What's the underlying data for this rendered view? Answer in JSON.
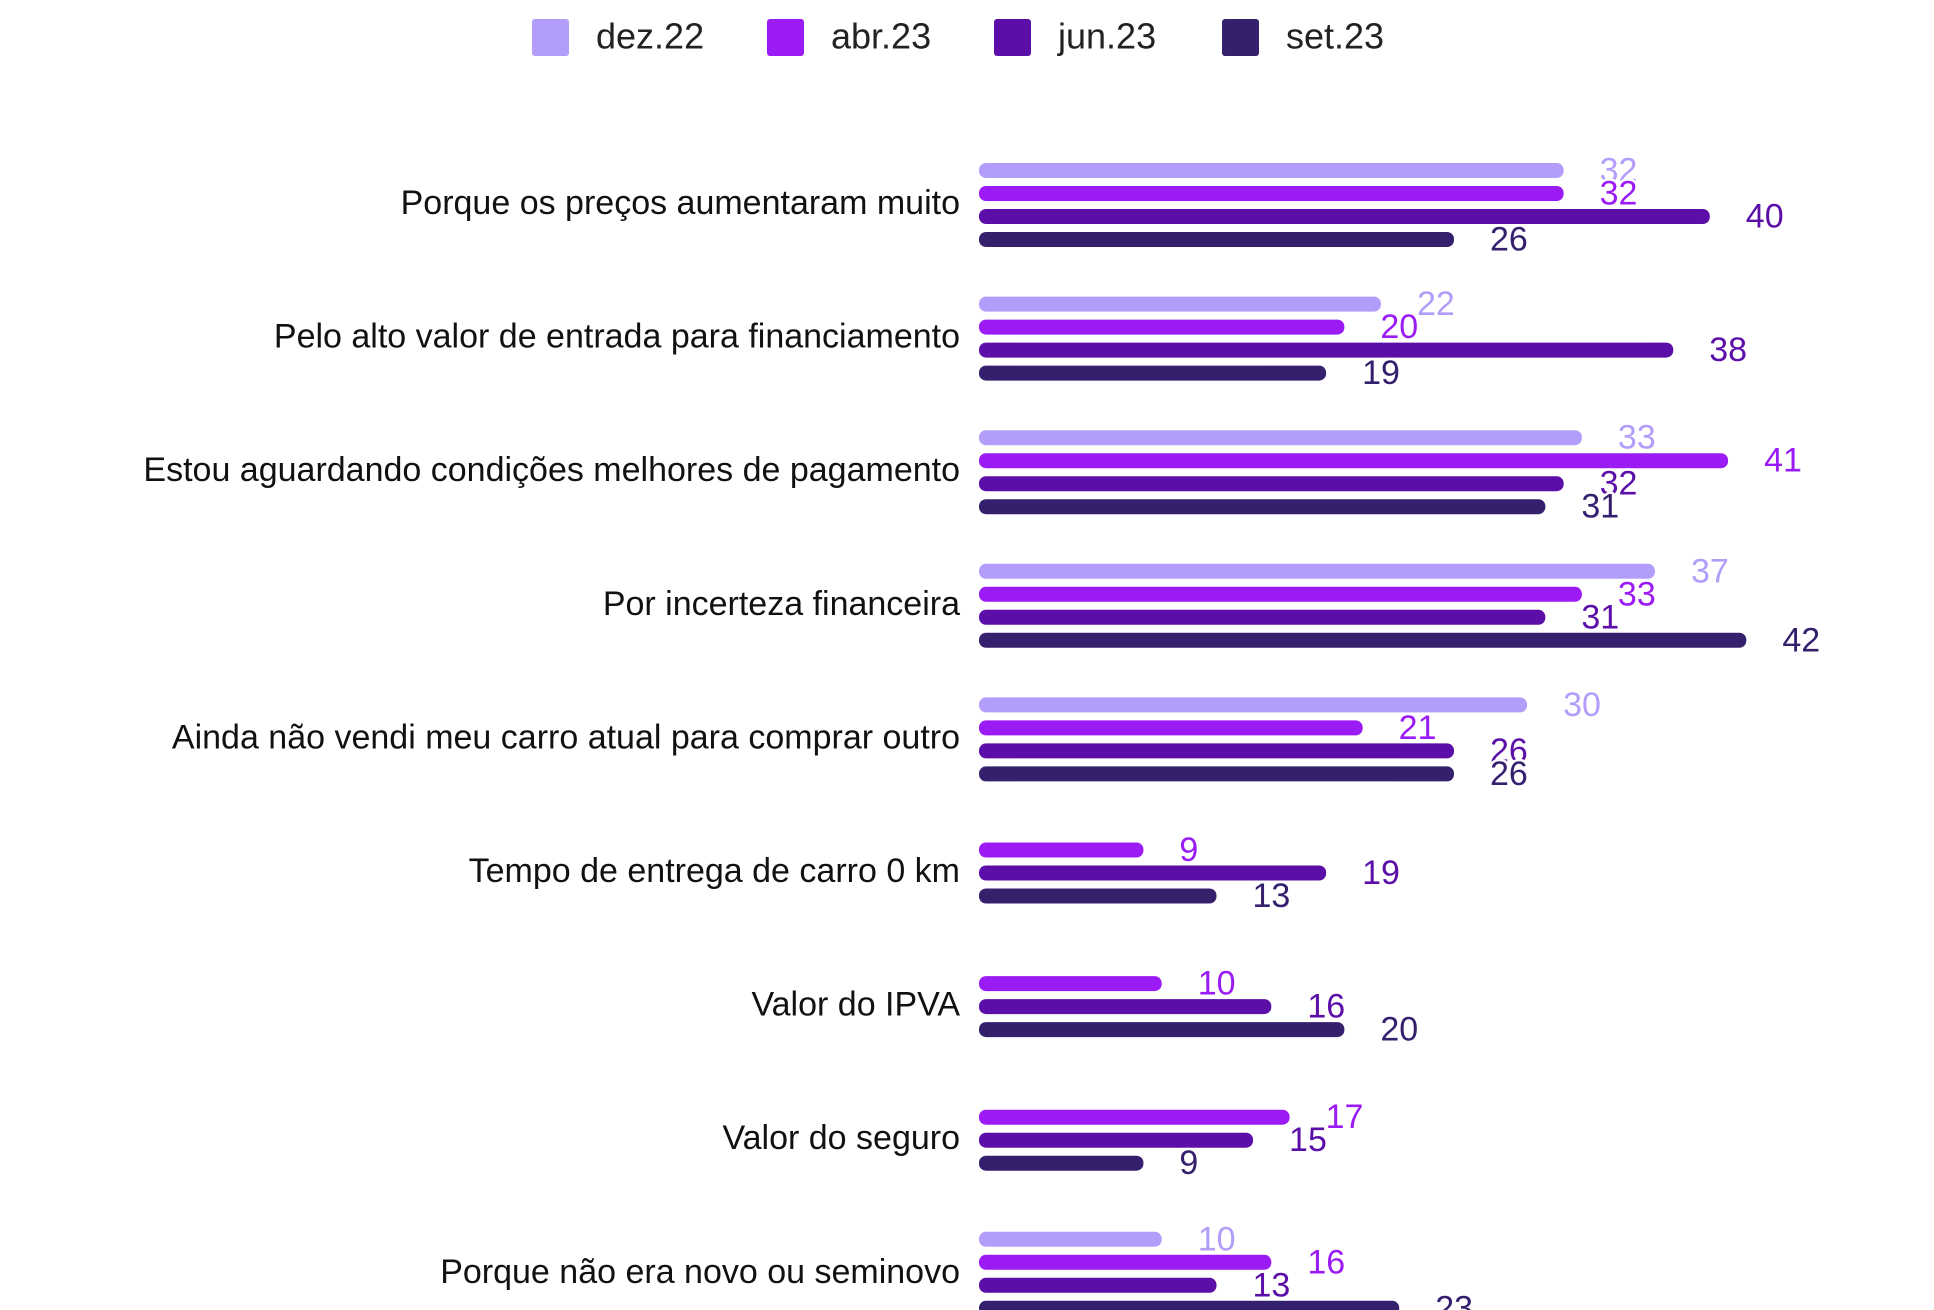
{
  "chart_data": {
    "type": "bar",
    "orientation": "horizontal",
    "categories": [
      "Porque os preços aumentaram muito",
      "Pelo alto valor de entrada para financiamento",
      "Estou aguardando condições melhores de pagamento",
      "Por incerteza financeira",
      "Ainda não vendi meu carro atual para comprar outro",
      "Tempo de entrega de carro 0 km",
      "Valor do IPVA",
      "Valor do seguro",
      "Porque não era novo ou seminovo"
    ],
    "series": [
      {
        "name": "dez.22",
        "color": "#b39dfa",
        "values": [
          32,
          22,
          33,
          37,
          30,
          null,
          null,
          null,
          10
        ]
      },
      {
        "name": "abr.23",
        "color": "#9b1bf5",
        "values": [
          32,
          20,
          41,
          33,
          21,
          9,
          10,
          17,
          16
        ]
      },
      {
        "name": "jun.23",
        "color": "#5b0fa8",
        "values": [
          40,
          38,
          32,
          31,
          26,
          19,
          16,
          15,
          13
        ]
      },
      {
        "name": "set.23",
        "color": "#35206e",
        "values": [
          26,
          19,
          31,
          42,
          26,
          13,
          20,
          9,
          23
        ]
      }
    ],
    "legend": "top"
  }
}
